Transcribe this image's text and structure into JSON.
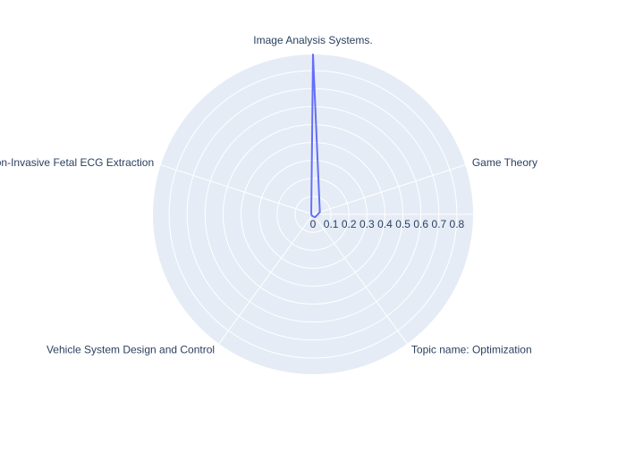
{
  "chart_data": {
    "type": "radar",
    "title": "",
    "axes": [
      "Image Analysis Systems.",
      "Game Theory",
      "Topic name: Optimization",
      "Vehicle System Design and Control",
      "Non-Invasive Fetal ECG Extraction"
    ],
    "series": [
      {
        "name": "",
        "values": [
          0.89,
          0.04,
          0.02,
          0.01,
          0.01
        ],
        "color": "#636efa"
      }
    ],
    "radial_range": [
      0,
      0.89
    ],
    "radial_ticks": [
      0,
      0.1,
      0.2,
      0.3,
      0.4,
      0.5,
      0.6,
      0.7,
      0.8
    ],
    "radial_tick_labels": [
      "0",
      "0.1",
      "0.2",
      "0.3",
      "0.4",
      "0.5",
      "0.6",
      "0.7",
      "0.8"
    ],
    "polar_bgcolor": "#e5ecf6",
    "grid_color": "#ffffff",
    "grid": true,
    "legend": "none"
  }
}
